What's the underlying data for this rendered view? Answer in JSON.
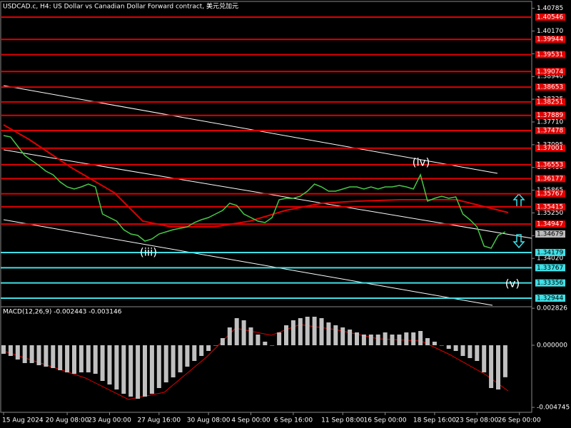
{
  "chart_data": [
    {
      "type": "line",
      "title": "USDCAD.c, H4: US Dollar vs Canadian Dollar Forward contract, 美元兑加元",
      "categories": [
        "15 Aug 2024",
        null,
        null,
        null,
        null,
        null,
        null,
        null,
        null,
        "20 Aug 08:00",
        null,
        null,
        null,
        null,
        null,
        "23 Aug 00:00",
        null,
        null,
        null,
        null,
        null,
        null,
        "27 Aug 16:00",
        null,
        null,
        null,
        null,
        null,
        null,
        "30 Aug 08:00",
        null,
        null,
        null,
        null,
        null,
        "4 Sep 00:00",
        null,
        null,
        null,
        null,
        null,
        "6 Sep 16:00",
        null,
        null,
        null,
        null,
        null,
        null,
        "11 Sep 08:00",
        null,
        null,
        null,
        null,
        null,
        "16 Sep 00:00",
        null,
        null,
        null,
        null,
        null,
        null,
        "18 Sep 16:00",
        null,
        null,
        null,
        null,
        null,
        "23 Sep 08:00",
        null,
        null,
        null,
        null,
        null,
        "26 Sep 00:00"
      ],
      "values": [
        1.37343,
        1.37305,
        1.37054,
        1.36803,
        1.36668,
        1.36533,
        1.36378,
        1.36282,
        1.36089,
        1.35954,
        1.35896,
        1.35954,
        1.36031,
        1.35954,
        1.35221,
        1.35124,
        1.35028,
        1.34796,
        1.34681,
        1.34642,
        1.34488,
        1.34546,
        1.34681,
        1.34738,
        1.34796,
        1.34835,
        1.34874,
        1.34989,
        1.35066,
        1.35124,
        1.35221,
        1.35317,
        1.3551,
        1.35452,
        1.35221,
        1.35124,
        1.35028,
        1.34989,
        1.35124,
        1.35607,
        1.35645,
        1.35645,
        1.35703,
        1.35838,
        1.36031,
        1.35954,
        1.35838,
        1.35838,
        1.35896,
        1.35954,
        1.35954,
        1.35896,
        1.35954,
        1.35896,
        1.35954,
        1.35954,
        1.35993,
        1.35954,
        1.35896,
        1.36282,
        1.35568,
        1.35645,
        1.35703,
        1.35645,
        1.35684,
        1.35221,
        1.35066,
        1.34874,
        1.34353,
        1.34295,
        1.34642,
        1.34738,
        null,
        null
      ],
      "color": "#46c846",
      "ylim": [
        1.32712,
        1.41009
      ],
      "yticks": [
        1.40785,
        {
          "value": 1.4017,
          "label": "1.40170"
        },
        1.39555,
        {
          "value": 1.3894,
          "label": "1.38940"
        },
        1.38325,
        {
          "value": 1.3771,
          "label": "1.37710"
        },
        1.37095,
        {
          "value": 1.3648,
          "label": "1.36480"
        },
        1.35865,
        {
          "value": 1.3525,
          "label": "1.35250"
        },
        1.34635,
        {
          "value": 1.3402,
          "label": "1.34020"
        }
      ],
      "resistance_levels": [
        1.40546,
        1.39944,
        1.39531,
        1.39074,
        1.38653,
        1.38251,
        1.37889,
        1.37478,
        1.37001,
        1.36553,
        1.36177,
        1.35767,
        1.35415,
        1.34947
      ],
      "resistance_color": "#e00000",
      "support_levels": [
        1.34179,
        1.33767,
        1.33356,
        1.32944
      ],
      "support_color": "#3fe0e6",
      "current_price": 1.34679,
      "annotations": [
        "(iii)",
        "(iv)",
        "(v)"
      ]
    },
    {
      "type": "bar",
      "title": "MACD(12,26,9) -0.002443 -0.003146",
      "values": [
        -0.000654,
        -0.000818,
        -0.00109,
        -0.001363,
        -0.001363,
        -0.001526,
        -0.001635,
        -0.001744,
        -0.001908,
        -0.002071,
        -0.00218,
        -0.002071,
        -0.002071,
        -0.00218,
        -0.002725,
        -0.002998,
        -0.003379,
        -0.003706,
        -0.003924,
        -0.004088,
        -0.003924,
        -0.003706,
        -0.00327,
        -0.002834,
        -0.002453,
        -0.002071,
        -0.001635,
        -0.001199,
        -0.000818,
        -0.000436,
        0,
        0.000545,
        0.001363,
        0.002071,
        0.001908,
        0.001363,
        0.000818,
        0.000273,
        0,
        0.000981,
        0.001526,
        0.001908,
        0.002071,
        0.00218,
        0.00218,
        0.002071,
        0.001744,
        0.001526,
        0.001363,
        0.001199,
        0.000981,
        0.000818,
        0.000818,
        0.000818,
        0.000981,
        0.000818,
        0.000818,
        0.000981,
        0.000981,
        0.00109,
        0.000545,
        0.000273,
        0,
        -0.000273,
        -0.000436,
        -0.000818,
        -0.000981,
        -0.001199,
        -0.002071,
        -0.00327,
        -0.003379,
        -0.002443,
        null,
        null
      ],
      "color": "#c0c0c0",
      "ylim": [
        -0.005123,
        0.002943
      ],
      "yticks": [
        0.002826,
        {
          "value": 0,
          "label": "0.000000"
        },
        -0.004745
      ]
    }
  ]
}
